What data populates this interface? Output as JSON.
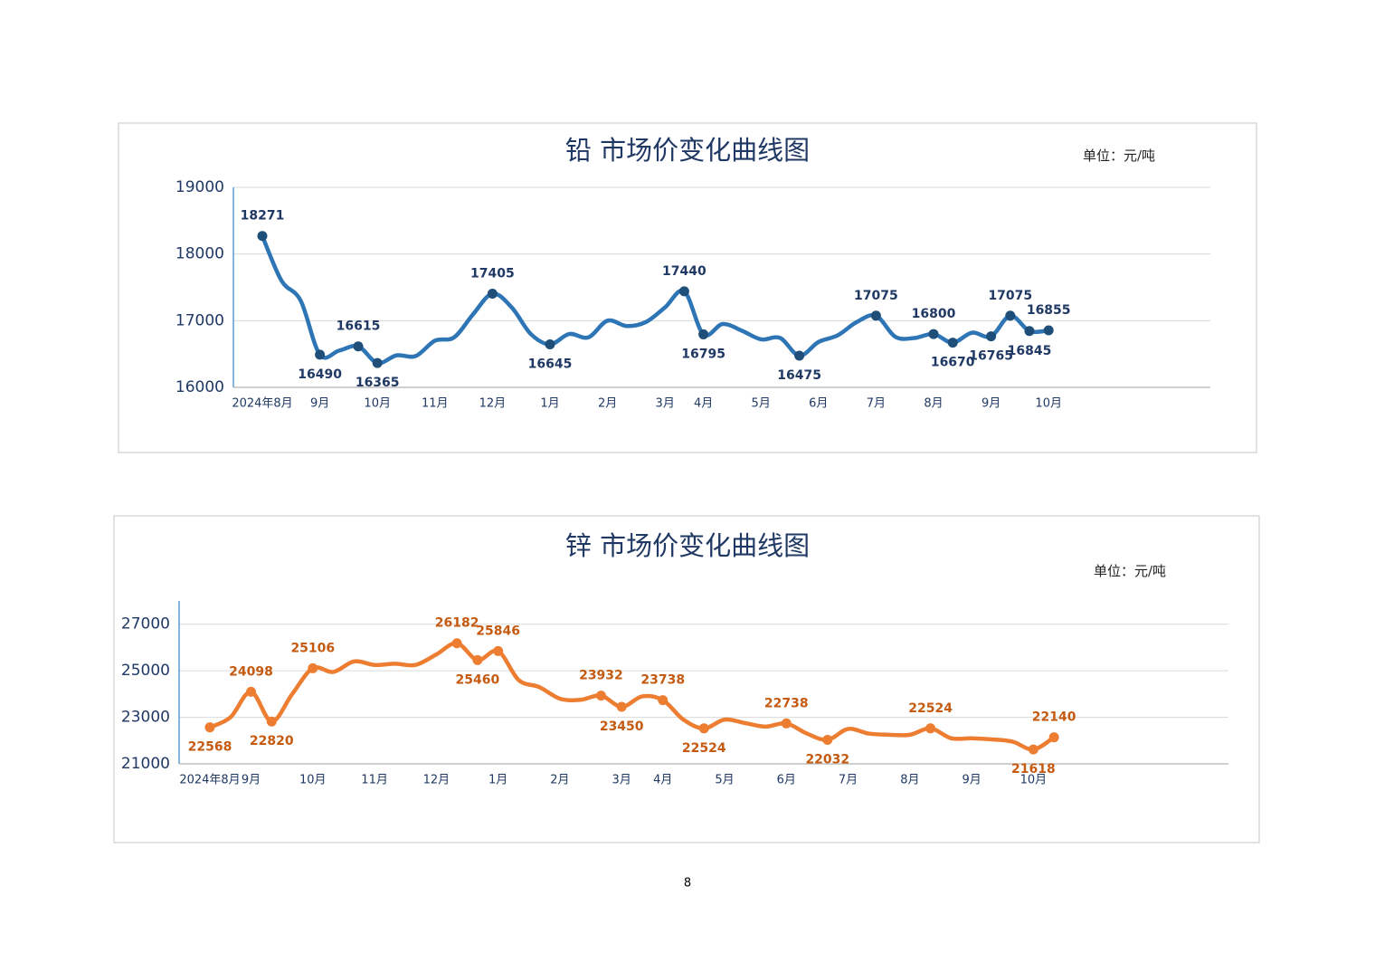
{
  "page_number": "8",
  "chart_data": [
    {
      "type": "line",
      "title": "铅 市场价变化曲线图",
      "unit": "单位：元/吨",
      "categories": [
        "2024年8月",
        null,
        null,
        "9月",
        null,
        null,
        "10月",
        null,
        null,
        "11月",
        null,
        null,
        "12月",
        null,
        null,
        "1月",
        null,
        null,
        "2月",
        null,
        null,
        "3月",
        null,
        "4月",
        null,
        null,
        "5月",
        null,
        null,
        "6月",
        null,
        null,
        "7月",
        null,
        null,
        "8月",
        null,
        null,
        "9月",
        null,
        null,
        "10月"
      ],
      "values": [
        18271,
        17600,
        17300,
        16490,
        16550,
        16615,
        16365,
        16480,
        16470,
        16700,
        16750,
        17100,
        17405,
        17200,
        16800,
        16645,
        16800,
        16750,
        17000,
        16920,
        16980,
        17200,
        17440,
        16795,
        16950,
        16850,
        16720,
        16740,
        16475,
        16680,
        16780,
        16980,
        17075,
        16760,
        16740,
        16800,
        16670,
        16820,
        16765,
        17075,
        16845,
        16855
      ],
      "value_labels": [
        "18271",
        null,
        null,
        "16490",
        null,
        "16615",
        "16365",
        null,
        null,
        null,
        null,
        null,
        "17405",
        null,
        null,
        "16645",
        null,
        null,
        null,
        null,
        null,
        null,
        "17440",
        "16795",
        null,
        null,
        null,
        null,
        "16475",
        null,
        null,
        null,
        "17075",
        null,
        null,
        "16800",
        "16670",
        null,
        "16765",
        "17075",
        "16845",
        "16855"
      ],
      "color": "#2e75b6",
      "marker_color": "#1f4e79",
      "label_color": "#1f3864",
      "ylim": [
        16000,
        19000
      ],
      "yticks": [
        16000,
        17000,
        18000,
        19000
      ],
      "grid": true
    },
    {
      "type": "line",
      "title": "锌 市场价变化曲线图",
      "unit": "单位：元/吨",
      "categories": [
        "2024年8月",
        null,
        "9月",
        null,
        null,
        "10月",
        null,
        null,
        "11月",
        null,
        null,
        "12月",
        null,
        null,
        "1月",
        null,
        null,
        "2月",
        null,
        null,
        "3月",
        null,
        "4月",
        null,
        null,
        "5月",
        null,
        null,
        "6月",
        null,
        null,
        "7月",
        null,
        null,
        "8月",
        null,
        null,
        "9月",
        null,
        null,
        "10月",
        null
      ],
      "values": [
        22568,
        23000,
        24098,
        22820,
        24000,
        25106,
        24950,
        25400,
        25250,
        25300,
        25250,
        25700,
        26182,
        25460,
        25846,
        24600,
        24300,
        23800,
        23750,
        23932,
        23450,
        23900,
        23738,
        22900,
        22524,
        22900,
        22750,
        22600,
        22738,
        22300,
        22032,
        22500,
        22300,
        22250,
        22250,
        22524,
        22100,
        22100,
        22050,
        21950,
        21618,
        22140
      ],
      "value_labels": [
        "22568",
        null,
        "24098",
        "22820",
        null,
        "25106",
        null,
        null,
        null,
        null,
        null,
        null,
        "26182",
        "25460",
        "25846",
        null,
        null,
        null,
        null,
        "23932",
        "23450",
        null,
        "23738",
        null,
        "22524",
        null,
        null,
        null,
        "22738",
        null,
        "22032",
        null,
        null,
        null,
        null,
        "22524",
        null,
        null,
        null,
        null,
        "21618",
        "22140"
      ],
      "color": "#ed7d31",
      "marker_color": "#ed7d31",
      "label_color": "#c55a11",
      "ylim": [
        21000,
        28000
      ],
      "yticks": [
        21000,
        23000,
        25000,
        27000
      ],
      "grid": true
    }
  ]
}
